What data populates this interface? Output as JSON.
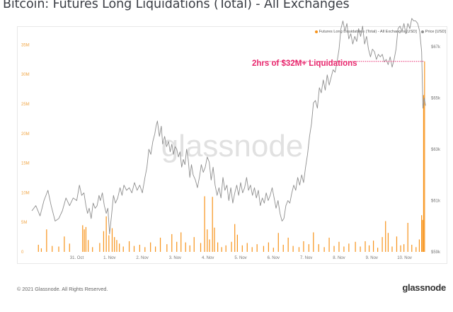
{
  "header": {
    "title": "Bitcoin: Futures Long Liquidations (Total) - All Exchanges"
  },
  "legend": {
    "liquidations_label": "Futures Long Liquidations (Total) - All Exchanges [USD]",
    "price_label": "Price [USD]"
  },
  "annotation": {
    "text": "2hrs of $32M+ Liquidations"
  },
  "watermark": "glassnode",
  "footer": {
    "copyright": "© 2021 Glassnode. All Rights Reserved.",
    "logo": "glassnode"
  },
  "colors": {
    "liquidations": "#f7931a",
    "price": "#8e8e8e",
    "annotation": "#e8286e",
    "left_axis_text": "#f0a646",
    "right_axis_text": "#777777"
  },
  "chart_data": {
    "type": "bar",
    "title": "Bitcoin: Futures Long Liquidations (Total) - All Exchanges",
    "x_ticks": [
      "31. Oct",
      "1. Nov",
      "2. Nov",
      "3. Nov",
      "4. Nov",
      "5. Nov",
      "6. Nov",
      "7. Nov",
      "8. Nov",
      "9. Nov",
      "10. Nov"
    ],
    "x_domain": [
      -1.37,
      10.7
    ],
    "left_axis": {
      "ticks": [
        "0",
        "5M",
        "10M",
        "15M",
        "20M",
        "25M",
        "30M",
        "35M"
      ],
      "ylim": [
        0,
        36000000
      ]
    },
    "right_axis": {
      "ticks": [
        "$59k",
        "$61k",
        "$63k",
        "$65k",
        "$67k"
      ],
      "ylim": [
        59000,
        67300
      ]
    },
    "grid": false,
    "legend_position": "top-right",
    "series": [
      {
        "name": "Futures Long Liquidations (Total) - All Exchanges [USD]",
        "type": "bar",
        "axis": "left",
        "points": [
          [
            -1.17,
            1.2
          ],
          [
            -1.08,
            0.6
          ],
          [
            -0.92,
            3.8
          ],
          [
            -0.75,
            1.0
          ],
          [
            -0.55,
            0.9
          ],
          [
            -0.38,
            2.6
          ],
          [
            -0.22,
            1.4
          ],
          [
            0.18,
            4.5
          ],
          [
            0.23,
            3.8
          ],
          [
            0.28,
            4.2
          ],
          [
            0.35,
            2.0
          ],
          [
            0.48,
            0.8
          ],
          [
            0.7,
            1.5
          ],
          [
            0.82,
            3.5
          ],
          [
            0.9,
            6.0
          ],
          [
            0.98,
            2.8
          ],
          [
            1.08,
            4.0
          ],
          [
            1.15,
            2.5
          ],
          [
            1.22,
            2.0
          ],
          [
            1.3,
            1.4
          ],
          [
            1.42,
            0.9
          ],
          [
            1.6,
            1.8
          ],
          [
            1.75,
            1.0
          ],
          [
            1.92,
            1.2
          ],
          [
            2.08,
            0.8
          ],
          [
            2.25,
            1.6
          ],
          [
            2.4,
            0.9
          ],
          [
            2.55,
            2.4
          ],
          [
            2.75,
            1.3
          ],
          [
            2.9,
            3.0
          ],
          [
            3.05,
            1.7
          ],
          [
            3.18,
            3.3
          ],
          [
            3.32,
            1.6
          ],
          [
            3.45,
            1.1
          ],
          [
            3.58,
            2.5
          ],
          [
            3.78,
            1.5
          ],
          [
            3.9,
            9.4
          ],
          [
            3.98,
            3.8
          ],
          [
            4.05,
            2.1
          ],
          [
            4.14,
            9.3
          ],
          [
            4.2,
            4.1
          ],
          [
            4.3,
            1.6
          ],
          [
            4.42,
            0.8
          ],
          [
            4.55,
            1.1
          ],
          [
            4.72,
            1.7
          ],
          [
            4.82,
            4.7
          ],
          [
            4.9,
            2.9
          ],
          [
            5.05,
            1.1
          ],
          [
            5.2,
            1.5
          ],
          [
            5.35,
            0.8
          ],
          [
            5.5,
            1.3
          ],
          [
            5.7,
            1.0
          ],
          [
            5.85,
            1.6
          ],
          [
            6.0,
            0.7
          ],
          [
            6.15,
            3.2
          ],
          [
            6.3,
            1.2
          ],
          [
            6.45,
            2.4
          ],
          [
            6.6,
            1.0
          ],
          [
            6.78,
            0.8
          ],
          [
            6.92,
            1.8
          ],
          [
            7.08,
            1.3
          ],
          [
            7.22,
            3.3
          ],
          [
            7.38,
            1.3
          ],
          [
            7.55,
            0.8
          ],
          [
            7.7,
            2.4
          ],
          [
            7.85,
            1.0
          ],
          [
            8.0,
            1.7
          ],
          [
            8.15,
            0.9
          ],
          [
            8.3,
            1.4
          ],
          [
            8.5,
            1.7
          ],
          [
            8.65,
            0.9
          ],
          [
            8.8,
            1.8
          ],
          [
            8.92,
            1.1
          ],
          [
            9.05,
            1.9
          ],
          [
            9.18,
            0.7
          ],
          [
            9.32,
            2.5
          ],
          [
            9.42,
            5.2
          ],
          [
            9.5,
            3.2
          ],
          [
            9.62,
            0.9
          ],
          [
            9.76,
            2.6
          ],
          [
            9.88,
            1.1
          ],
          [
            9.98,
            1.3
          ],
          [
            10.1,
            4.9
          ],
          [
            10.22,
            1.2
          ],
          [
            10.35,
            0.8
          ],
          [
            10.45,
            2.1
          ],
          [
            10.52,
            6.2
          ],
          [
            10.55,
            5.4
          ],
          [
            10.58,
            26.5
          ],
          [
            10.61,
            32.2
          ]
        ]
      },
      {
        "name": "Price [USD]",
        "type": "line",
        "axis": "right",
        "points": [
          [
            -1.37,
            60.6
          ],
          [
            -1.25,
            60.8
          ],
          [
            -1.12,
            60.4
          ],
          [
            -1.0,
            61.0
          ],
          [
            -0.88,
            61.4
          ],
          [
            -0.78,
            60.8
          ],
          [
            -0.66,
            60.2
          ],
          [
            -0.55,
            60.3
          ],
          [
            -0.44,
            60.6
          ],
          [
            -0.33,
            61.1
          ],
          [
            -0.22,
            60.8
          ],
          [
            -0.11,
            61.1
          ],
          [
            0.0,
            61.0
          ],
          [
            0.08,
            61.6
          ],
          [
            0.15,
            61.2
          ],
          [
            0.22,
            61.3
          ],
          [
            0.28,
            60.8
          ],
          [
            0.33,
            60.5
          ],
          [
            0.38,
            60.7
          ],
          [
            0.44,
            60.3
          ],
          [
            0.5,
            60.9
          ],
          [
            0.56,
            60.7
          ],
          [
            0.62,
            60.8
          ],
          [
            0.68,
            61.2
          ],
          [
            0.72,
            61.0
          ],
          [
            0.78,
            61.3
          ],
          [
            0.84,
            60.8
          ],
          [
            0.9,
            60.5
          ],
          [
            0.95,
            60.7
          ],
          [
            1.0,
            59.7
          ],
          [
            1.06,
            60.4
          ],
          [
            1.12,
            61.2
          ],
          [
            1.18,
            60.9
          ],
          [
            1.25,
            61.1
          ],
          [
            1.32,
            61.5
          ],
          [
            1.38,
            61.2
          ],
          [
            1.44,
            61.6
          ],
          [
            1.52,
            61.4
          ],
          [
            1.6,
            61.5
          ],
          [
            1.68,
            61.3
          ],
          [
            1.76,
            61.7
          ],
          [
            1.84,
            61.4
          ],
          [
            1.92,
            61.6
          ],
          [
            2.0,
            61.3
          ],
          [
            2.08,
            61.9
          ],
          [
            2.14,
            62.3
          ],
          [
            2.2,
            63.0
          ],
          [
            2.26,
            62.8
          ],
          [
            2.32,
            63.3
          ],
          [
            2.38,
            63.6
          ],
          [
            2.42,
            63.9
          ],
          [
            2.46,
            64.1
          ],
          [
            2.52,
            63.5
          ],
          [
            2.58,
            63.9
          ],
          [
            2.62,
            63.2
          ],
          [
            2.68,
            63.5
          ],
          [
            2.74,
            63.1
          ],
          [
            2.8,
            63.3
          ],
          [
            2.85,
            62.9
          ],
          [
            2.9,
            63.2
          ],
          [
            2.95,
            62.8
          ],
          [
            3.0,
            63.1
          ],
          [
            3.05,
            63.0
          ],
          [
            3.1,
            62.7
          ],
          [
            3.15,
            62.9
          ],
          [
            3.2,
            62.3
          ],
          [
            3.25,
            62.6
          ],
          [
            3.3,
            62.4
          ],
          [
            3.35,
            63.0
          ],
          [
            3.4,
            62.6
          ],
          [
            3.45,
            61.9
          ],
          [
            3.5,
            62.4
          ],
          [
            3.55,
            62.0
          ],
          [
            3.62,
            61.8
          ],
          [
            3.68,
            61.5
          ],
          [
            3.74,
            61.9
          ],
          [
            3.8,
            62.4
          ],
          [
            3.86,
            62.1
          ],
          [
            3.92,
            62.3
          ],
          [
            3.98,
            62.7
          ],
          [
            4.04,
            62.5
          ],
          [
            4.1,
            61.8
          ],
          [
            4.16,
            62.3
          ],
          [
            4.22,
            61.6
          ],
          [
            4.28,
            61.2
          ],
          [
            4.34,
            61.5
          ],
          [
            4.4,
            61.1
          ],
          [
            4.46,
            61.9
          ],
          [
            4.52,
            61.4
          ],
          [
            4.58,
            61.6
          ],
          [
            4.64,
            61.0
          ],
          [
            4.7,
            61.5
          ],
          [
            4.76,
            60.9
          ],
          [
            4.82,
            61.3
          ],
          [
            4.88,
            61.6
          ],
          [
            4.94,
            61.2
          ],
          [
            5.0,
            61.7
          ],
          [
            5.06,
            61.3
          ],
          [
            5.12,
            61.5
          ],
          [
            5.18,
            61.9
          ],
          [
            5.24,
            61.4
          ],
          [
            5.3,
            61.6
          ],
          [
            5.36,
            61.2
          ],
          [
            5.42,
            61.5
          ],
          [
            5.48,
            61.1
          ],
          [
            5.54,
            61.4
          ],
          [
            5.6,
            60.8
          ],
          [
            5.66,
            61.1
          ],
          [
            5.72,
            60.9
          ],
          [
            5.78,
            61.3
          ],
          [
            5.84,
            61.0
          ],
          [
            5.9,
            61.2
          ],
          [
            5.96,
            61.5
          ],
          [
            6.02,
            61.1
          ],
          [
            6.08,
            60.7
          ],
          [
            6.14,
            61.0
          ],
          [
            6.2,
            60.5
          ],
          [
            6.26,
            60.2
          ],
          [
            6.32,
            60.3
          ],
          [
            6.38,
            60.8
          ],
          [
            6.44,
            61.0
          ],
          [
            6.5,
            60.9
          ],
          [
            6.56,
            61.3
          ],
          [
            6.62,
            61.6
          ],
          [
            6.68,
            61.4
          ],
          [
            6.74,
            61.9
          ],
          [
            6.8,
            61.6
          ],
          [
            6.86,
            62.0
          ],
          [
            6.92,
            61.7
          ],
          [
            6.98,
            62.3
          ],
          [
            7.04,
            62.8
          ],
          [
            7.1,
            63.5
          ],
          [
            7.16,
            64.0
          ],
          [
            7.22,
            64.8
          ],
          [
            7.28,
            64.9
          ],
          [
            7.34,
            64.6
          ],
          [
            7.4,
            65.4
          ],
          [
            7.46,
            65.2
          ],
          [
            7.52,
            65.7
          ],
          [
            7.58,
            65.3
          ],
          [
            7.64,
            65.9
          ],
          [
            7.7,
            65.5
          ],
          [
            7.76,
            65.8
          ],
          [
            7.82,
            66.1
          ],
          [
            7.88,
            66.0
          ],
          [
            7.94,
            66.4
          ],
          [
            8.0,
            66.9
          ],
          [
            8.06,
            67.7
          ],
          [
            8.12,
            68.0
          ],
          [
            8.18,
            67.6
          ],
          [
            8.24,
            67.9
          ],
          [
            8.3,
            67.3
          ],
          [
            8.36,
            67.5
          ],
          [
            8.42,
            67.1
          ],
          [
            8.48,
            67.4
          ],
          [
            8.54,
            67.2
          ],
          [
            8.6,
            67.7
          ],
          [
            8.66,
            67.4
          ],
          [
            8.72,
            67.8
          ],
          [
            8.78,
            67.1
          ],
          [
            8.84,
            67.4
          ],
          [
            8.9,
            66.9
          ],
          [
            8.96,
            66.6
          ],
          [
            9.02,
            66.9
          ],
          [
            9.08,
            66.8
          ],
          [
            9.14,
            66.5
          ],
          [
            9.2,
            66.7
          ],
          [
            9.26,
            66.6
          ],
          [
            9.32,
            66.7
          ],
          [
            9.38,
            66.4
          ],
          [
            9.44,
            66.5
          ],
          [
            9.5,
            66.3
          ],
          [
            9.56,
            66.6
          ],
          [
            9.62,
            66.2
          ],
          [
            9.68,
            66.5
          ],
          [
            9.74,
            66.9
          ],
          [
            9.8,
            67.7
          ],
          [
            9.86,
            67.8
          ],
          [
            9.92,
            67.6
          ],
          [
            9.98,
            67.9
          ],
          [
            10.04,
            67.5
          ],
          [
            10.1,
            67.9
          ],
          [
            10.16,
            67.7
          ],
          [
            10.22,
            68.1
          ],
          [
            10.28,
            68.0
          ],
          [
            10.34,
            68.0
          ],
          [
            10.4,
            67.9
          ],
          [
            10.46,
            67.6
          ],
          [
            10.52,
            66.8
          ],
          [
            10.56,
            64.6
          ],
          [
            10.6,
            65.0
          ],
          [
            10.64,
            64.7
          ]
        ]
      }
    ],
    "units": {
      "bars": "millions of USD",
      "line": "thousands of USD"
    },
    "annotations": [
      {
        "text": "2hrs of $32M+ Liquidations",
        "level": 32200000,
        "x_start": 5.75,
        "x_end": 10.6
      }
    ]
  }
}
